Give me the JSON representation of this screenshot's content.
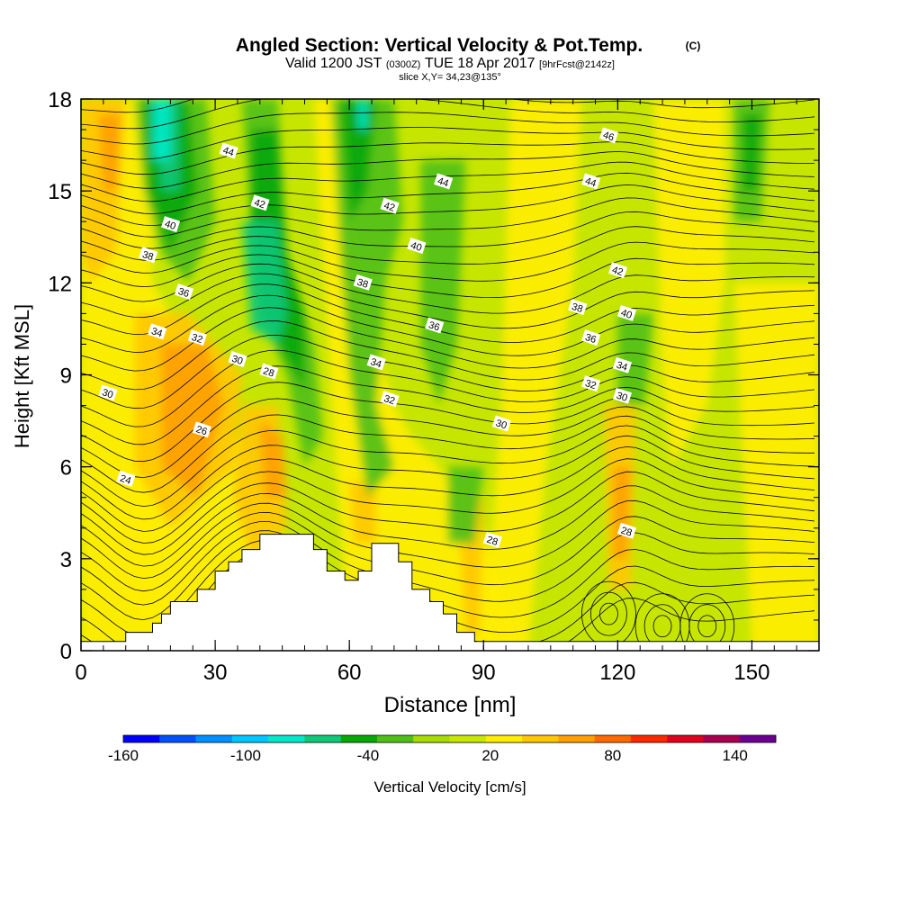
{
  "chart_data": {
    "type": "heatmap",
    "title": "Angled Section: Vertical Velocity & Pot.Temp.",
    "title_mark": "(C)",
    "subtitle": {
      "prefix": "Valid 1200 JST",
      "utc": "(0300Z)",
      "date": "TUE 18 Apr 2017",
      "fcst": "[9hrFcst@2142z]"
    },
    "slice_label": "slice X,Y= 34,23@135°",
    "xlabel": "Distance [nm]",
    "ylabel": "Height [Kft MSL]",
    "xlim": [
      0,
      165
    ],
    "ylim": [
      0,
      18
    ],
    "x_ticks": [
      "0",
      "30",
      "60",
      "90",
      "120",
      "150"
    ],
    "y_ticks": [
      "0",
      "3",
      "6",
      "9",
      "12",
      "15",
      "18"
    ],
    "colorbar": {
      "label": "Vertical Velocity [cm/s]",
      "tick_labels": [
        "-160",
        "-100",
        "-40",
        "20",
        "80",
        "140"
      ],
      "tick_values": [
        -160,
        -100,
        -40,
        20,
        80,
        140
      ],
      "range": [
        -160,
        160
      ],
      "colors": [
        "#0000ff",
        "#0050ff",
        "#0090ff",
        "#00c8ff",
        "#00e8c8",
        "#10c878",
        "#08a808",
        "#50c018",
        "#a8dc00",
        "#c8e800",
        "#ffee00",
        "#ffc800",
        "#ffa000",
        "#ff6a00",
        "#ff2800",
        "#e0001e",
        "#a80050",
        "#6a0090"
      ]
    },
    "terrain": [
      [
        0,
        0.3
      ],
      [
        10,
        0.3
      ],
      [
        10,
        0.6
      ],
      [
        16,
        0.6
      ],
      [
        16,
        0.9
      ],
      [
        18,
        0.9
      ],
      [
        18,
        1.2
      ],
      [
        20,
        1.2
      ],
      [
        20,
        1.6
      ],
      [
        26,
        1.6
      ],
      [
        26,
        2.0
      ],
      [
        30,
        2.0
      ],
      [
        30,
        2.6
      ],
      [
        33,
        2.6
      ],
      [
        33,
        2.9
      ],
      [
        36,
        2.9
      ],
      [
        36,
        3.3
      ],
      [
        40,
        3.3
      ],
      [
        40,
        3.8
      ],
      [
        52,
        3.8
      ],
      [
        52,
        3.3
      ],
      [
        55,
        3.3
      ],
      [
        55,
        2.6
      ],
      [
        59,
        2.6
      ],
      [
        59,
        2.3
      ],
      [
        62,
        2.3
      ],
      [
        62,
        2.6
      ],
      [
        65,
        2.6
      ],
      [
        65,
        3.5
      ],
      [
        71,
        3.5
      ],
      [
        71,
        2.9
      ],
      [
        74,
        2.9
      ],
      [
        74,
        2.0
      ],
      [
        78,
        2.0
      ],
      [
        78,
        1.6
      ],
      [
        81,
        1.6
      ],
      [
        81,
        1.2
      ],
      [
        84,
        1.2
      ],
      [
        84,
        0.6
      ],
      [
        88,
        0.6
      ],
      [
        88,
        0.3
      ],
      [
        165,
        0.3
      ]
    ],
    "theta_labels": [
      {
        "x": 33,
        "y": 16.3,
        "v": "44"
      },
      {
        "x": 40,
        "y": 14.6,
        "v": "42"
      },
      {
        "x": 20,
        "y": 13.9,
        "v": "40"
      },
      {
        "x": 15,
        "y": 12.9,
        "v": "38"
      },
      {
        "x": 23,
        "y": 11.7,
        "v": "36"
      },
      {
        "x": 17,
        "y": 10.4,
        "v": "34"
      },
      {
        "x": 26,
        "y": 10.2,
        "v": "32"
      },
      {
        "x": 35,
        "y": 9.5,
        "v": "30"
      },
      {
        "x": 42,
        "y": 9.1,
        "v": "28"
      },
      {
        "x": 6,
        "y": 8.4,
        "v": "30"
      },
      {
        "x": 27,
        "y": 7.2,
        "v": "26"
      },
      {
        "x": 10,
        "y": 5.6,
        "v": "24"
      },
      {
        "x": 81,
        "y": 15.3,
        "v": "44"
      },
      {
        "x": 69,
        "y": 14.5,
        "v": "42"
      },
      {
        "x": 75,
        "y": 13.2,
        "v": "40"
      },
      {
        "x": 63,
        "y": 12.0,
        "v": "38"
      },
      {
        "x": 79,
        "y": 10.6,
        "v": "36"
      },
      {
        "x": 66,
        "y": 9.4,
        "v": "34"
      },
      {
        "x": 69,
        "y": 8.2,
        "v": "32"
      },
      {
        "x": 94,
        "y": 7.4,
        "v": "30"
      },
      {
        "x": 118,
        "y": 16.8,
        "v": "46"
      },
      {
        "x": 114,
        "y": 15.3,
        "v": "44"
      },
      {
        "x": 120,
        "y": 12.4,
        "v": "42"
      },
      {
        "x": 122,
        "y": 11.0,
        "v": "40"
      },
      {
        "x": 111,
        "y": 11.2,
        "v": "38"
      },
      {
        "x": 114,
        "y": 10.2,
        "v": "36"
      },
      {
        "x": 121,
        "y": 9.3,
        "v": "34"
      },
      {
        "x": 114,
        "y": 8.7,
        "v": "32"
      },
      {
        "x": 121,
        "y": 8.3,
        "v": "30"
      },
      {
        "x": 92,
        "y": 3.6,
        "v": "28"
      },
      {
        "x": 122,
        "y": 3.9,
        "v": "28"
      }
    ]
  }
}
